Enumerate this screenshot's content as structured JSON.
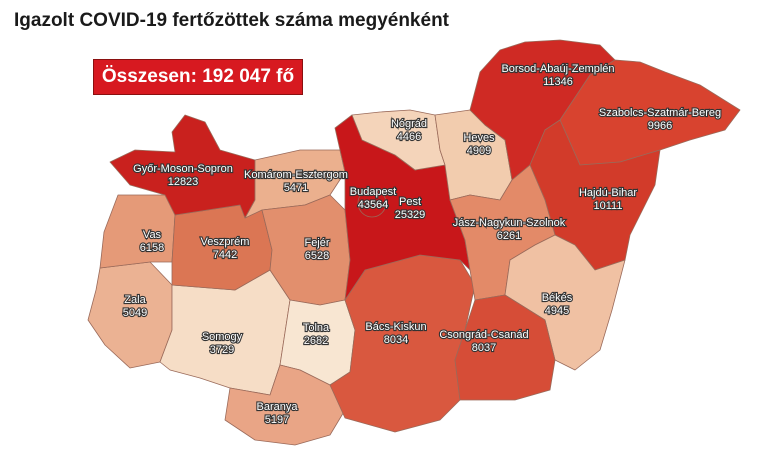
{
  "title": "Igazolt COVID-19 fertőzöttek száma megyénként",
  "total_label": "Összesen: 192 047 fő",
  "counties": [
    {
      "id": "gyor",
      "name": "Győr-Moson-Sopron",
      "value": "12823",
      "color": "#c9211e"
    },
    {
      "id": "vas",
      "name": "Vas",
      "value": "6158",
      "color": "#e59a78"
    },
    {
      "id": "zala",
      "name": "Zala",
      "value": "5049",
      "color": "#ebb293"
    },
    {
      "id": "veszprem",
      "name": "Veszprém",
      "value": "7442",
      "color": "#db7654"
    },
    {
      "id": "komarom",
      "name": "Komárom-Esztergom",
      "value": "5471",
      "color": "#ebb08e"
    },
    {
      "id": "fejer",
      "name": "Fejér",
      "value": "6528",
      "color": "#e28f6d"
    },
    {
      "id": "somogy",
      "name": "Somogy",
      "value": "3729",
      "color": "#f6ddc6"
    },
    {
      "id": "tolna",
      "name": "Tolna",
      "value": "2682",
      "color": "#f8e6d2"
    },
    {
      "id": "baranya",
      "name": "Baranya",
      "value": "5197",
      "color": "#e9a586"
    },
    {
      "id": "pest",
      "name": "Pest",
      "value": "25329",
      "color": "#c8171a"
    },
    {
      "id": "budapest",
      "name": "Budapest",
      "value": "43564",
      "color": "#c8171a"
    },
    {
      "id": "nograd",
      "name": "Nógrád",
      "value": "4466",
      "color": "#f4d4ba"
    },
    {
      "id": "heves",
      "name": "Heves",
      "value": "4909",
      "color": "#f2ccae"
    },
    {
      "id": "borsod",
      "name": "Borsod-Abaúj-Zemplén",
      "value": "11346",
      "color": "#cf2a24"
    },
    {
      "id": "szabolcs",
      "name": "Szabolcs-Szatmár-Bereg",
      "value": "9966",
      "color": "#d8432f"
    },
    {
      "id": "hajdu",
      "name": "Hajdú-Bihar",
      "value": "10111",
      "color": "#d23b2a"
    },
    {
      "id": "jnsz",
      "name": "Jász-Nagykun-Szolnok",
      "value": "6261",
      "color": "#e38a68"
    },
    {
      "id": "bacs",
      "name": "Bács-Kiskun",
      "value": "8034",
      "color": "#d9583f"
    },
    {
      "id": "csongrad",
      "name": "Csongrád-Csanád",
      "value": "8037",
      "color": "#d64d37"
    },
    {
      "id": "bekes",
      "name": "Békés",
      "value": "4945",
      "color": "#f0c1a3"
    }
  ]
}
